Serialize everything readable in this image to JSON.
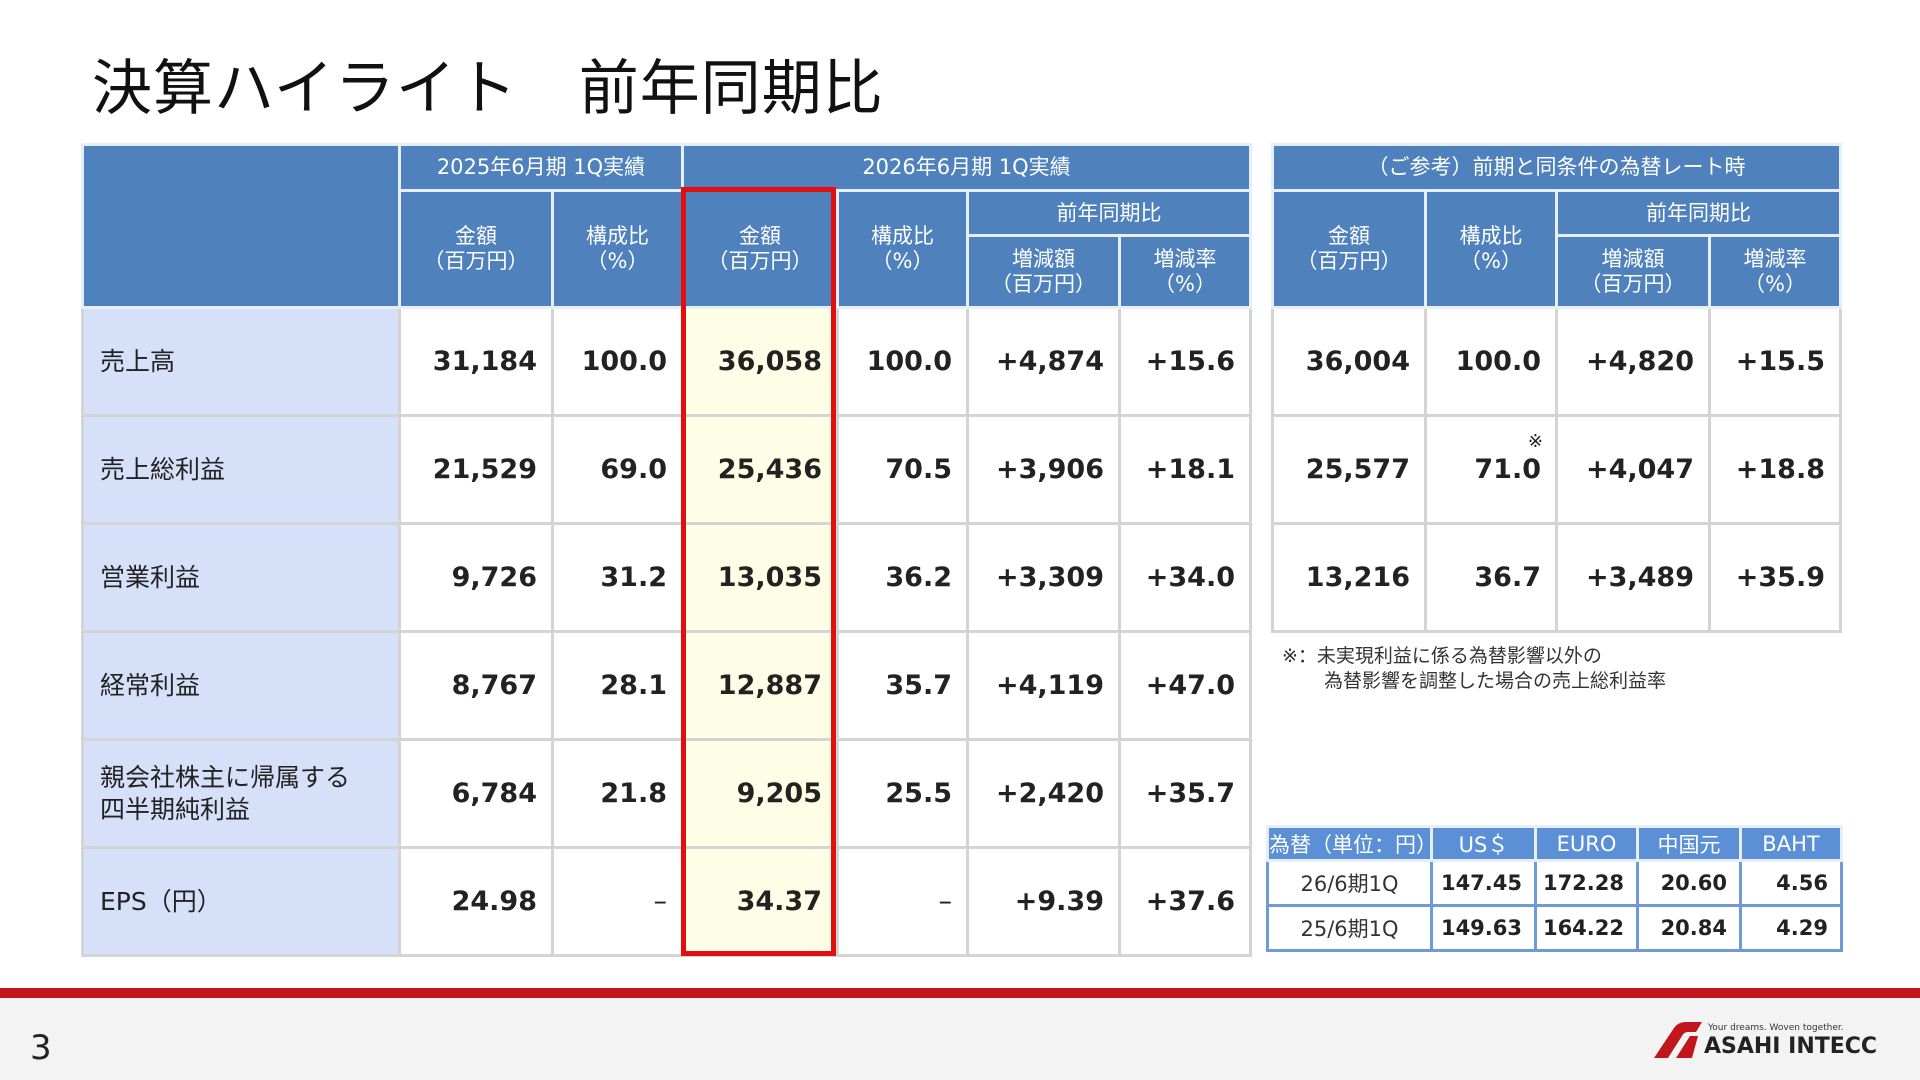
{
  "title": "決算ハイライト　前年同期比",
  "main": {
    "group_2025": "2025年6月期 1Q実績",
    "group_2026": "2026年6月期 1Q実績",
    "yoy": "前年同期比",
    "col_amount": [
      "金額",
      "（百万円）"
    ],
    "col_ratio": [
      "構成比",
      "（%）"
    ],
    "col_diff": [
      "増減額",
      "（百万円）"
    ],
    "col_rate": [
      "増減率",
      "（%）"
    ],
    "rows": [
      {
        "label": "売上高",
        "v": [
          "31,184",
          "100.0",
          "36,058",
          "100.0",
          "+4,874",
          "+15.6"
        ]
      },
      {
        "label": "売上総利益",
        "v": [
          "21,529",
          "69.0",
          "25,436",
          "70.5",
          "+3,906",
          "+18.1"
        ]
      },
      {
        "label": "営業利益",
        "v": [
          "9,726",
          "31.2",
          "13,035",
          "36.2",
          "+3,309",
          "+34.0"
        ]
      },
      {
        "label": "経常利益",
        "v": [
          "8,767",
          "28.1",
          "12,887",
          "35.7",
          "+4,119",
          "+47.0"
        ]
      },
      {
        "label": "親会社株主に帰属する\n四半期純利益",
        "v": [
          "6,784",
          "21.8",
          "9,205",
          "25.5",
          "+2,420",
          "+35.7"
        ]
      },
      {
        "label": "EPS（円）",
        "v": [
          "24.98",
          "–",
          "34.37",
          "–",
          "+9.39",
          "+37.6"
        ]
      }
    ]
  },
  "reference": {
    "header": "（ご参考）前期と同条件の為替レート時",
    "yoy": "前年同期比",
    "rows": [
      {
        "v": [
          "36,004",
          "100.0",
          "+4,820",
          "+15.5"
        ]
      },
      {
        "v": [
          "25,577",
          "71.0",
          "+4,047",
          "+18.8"
        ],
        "mark": "※"
      },
      {
        "v": [
          "13,216",
          "36.7",
          "+3,489",
          "+35.9"
        ]
      }
    ],
    "note": [
      "※：未実現利益に係る為替影響以外の",
      "為替影響を調整した場合の売上総利益率"
    ]
  },
  "fx": {
    "headers": [
      "為替（単位：円）",
      "US＄",
      "EURO",
      "中国元",
      "BAHT"
    ],
    "rows": [
      {
        "label": "26/6期1Q",
        "v": [
          "147.45",
          "172.28",
          "20.60",
          "4.56"
        ]
      },
      {
        "label": "25/6期1Q",
        "v": [
          "149.63",
          "164.22",
          "20.84",
          "4.29"
        ]
      }
    ]
  },
  "footer": {
    "page": "3",
    "logo": "ASAHI INTECC",
    "tagline": "Your dreams. Woven together."
  },
  "colors": {
    "header": "#4f81bd",
    "label_bg": "#d6e0f8",
    "highlight": "#fefee6",
    "highlight_border": "#e01010",
    "footer_line": "#c0161c"
  }
}
